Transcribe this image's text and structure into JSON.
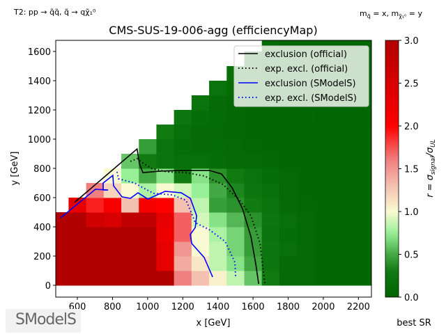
{
  "header_left": "T2: pp → q̃q̃, q̃ → qχ̃₁⁰",
  "header_right": {
    "m1": "m",
    "s1": "q̃",
    "eq1": " = x, ",
    "m2": "m",
    "s2": "χ̃₁⁰",
    "eq2": " = y"
  },
  "colorbar_label": {
    "r": "r = σ",
    "sub1": "signal",
    "slash": "/σ",
    "sub2": "UL"
  },
  "footer_right": "best SR",
  "logo_text": "SModelS",
  "chart_data": {
    "type": "heatmap",
    "title": "CMS-SUS-19-006-agg (efficiencyMap)",
    "xlabel": "x [GeV]",
    "ylabel": "y [GeV]",
    "xlim": [
      477,
      2274
    ],
    "ylim": [
      -81,
      1676
    ],
    "x_ticks": [
      "600",
      "800",
      "1000",
      "1200",
      "1400",
      "1600",
      "1800",
      "2000",
      "2200"
    ],
    "y_ticks": [
      "0",
      "200",
      "400",
      "600",
      "800",
      "1000",
      "1200",
      "1400",
      "1600"
    ],
    "colorbar": {
      "min": 0,
      "max": 3,
      "ticks": [
        "0.0",
        "0.5",
        "1.0",
        "1.5",
        "2.0",
        "2.5",
        "3.0"
      ],
      "stops": [
        [
          0,
          "#006400"
        ],
        [
          0.3,
          "#117a11"
        ],
        [
          0.5,
          "#44a844"
        ],
        [
          0.75,
          "#98f098"
        ],
        [
          1.0,
          "#fafad2"
        ],
        [
          1.3,
          "#f4c0b0"
        ],
        [
          1.6,
          "#f08080"
        ],
        [
          2.0,
          "#ff0000"
        ],
        [
          3.0,
          "#b00000"
        ]
      ]
    },
    "cell_size": 100,
    "x_centers": [
      500,
      600,
      700,
      800,
      900,
      1000,
      1100,
      1200,
      1300,
      1400,
      1500,
      1600,
      1700,
      1800,
      1900,
      2000,
      2100,
      2200,
      2300
    ],
    "y_centers": [
      50,
      150,
      250,
      350,
      450,
      550,
      650,
      750,
      850,
      950,
      1050,
      1150,
      1250,
      1350,
      1450,
      1550,
      1650
    ],
    "r": [
      [
        3,
        3,
        3,
        3,
        3,
        3,
        3,
        1.6,
        1.3,
        1.05,
        0.85,
        0.6,
        0.3,
        0.1,
        0.08,
        0.06,
        0.05,
        0.05,
        0.05
      ],
      [
        3,
        3,
        3,
        3,
        3,
        3,
        2.3,
        1.4,
        1.1,
        0.85,
        0.7,
        0.5,
        0.25,
        0.1,
        0.08,
        0.06,
        0.05,
        0.05,
        0.05
      ],
      [
        3,
        3,
        3,
        3,
        3,
        3,
        2.3,
        1.5,
        1.0,
        0.85,
        0.65,
        0.45,
        0.25,
        0.15,
        0.08,
        0.06,
        0.05,
        0.05,
        0.05
      ],
      [
        3,
        3,
        3,
        3,
        3,
        3,
        2.2,
        1.7,
        1.0,
        0.8,
        0.65,
        0.45,
        0.2,
        0.12,
        0.08,
        0.06,
        0.05,
        0.05,
        0.05
      ],
      [
        3,
        3,
        2.6,
        2.5,
        2.8,
        2.8,
        2.3,
        1.7,
        0.9,
        0.7,
        0.55,
        0.4,
        0.25,
        0.15,
        0.08,
        0.06,
        0.05,
        0.05,
        0.05
      ],
      [
        null,
        2.3,
        1.9,
        2.1,
        1.3,
        2.1,
        2.0,
        1.3,
        0.85,
        0.45,
        0.4,
        0.3,
        0.2,
        0.1,
        0.07,
        0.06,
        0.05,
        0.05,
        0.05
      ],
      [
        null,
        null,
        1.6,
        1.2,
        1.0,
        0.8,
        1.0,
        0.9,
        0.75,
        0.5,
        0.35,
        0.25,
        0.15,
        0.08,
        0.06,
        0.05,
        0.05,
        0.05,
        0.05
      ],
      [
        null,
        null,
        null,
        1.0,
        0.75,
        0.5,
        0.7,
        0.3,
        0.7,
        0.4,
        0.3,
        0.2,
        0.12,
        0.08,
        0.06,
        0.05,
        0.05,
        0.05,
        0.05
      ],
      [
        null,
        null,
        null,
        null,
        0.6,
        0.3,
        0.2,
        0.15,
        0.15,
        0.12,
        0.1,
        0.08,
        0.07,
        0.06,
        0.05,
        0.05,
        0.05,
        0.05,
        0.05
      ],
      [
        null,
        null,
        null,
        null,
        null,
        0.45,
        0.2,
        0.12,
        0.1,
        0.09,
        0.08,
        0.07,
        0.06,
        0.05,
        0.05,
        0.05,
        0.05,
        0.05,
        0.05
      ],
      [
        null,
        null,
        null,
        null,
        null,
        null,
        0.3,
        0.15,
        0.1,
        0.08,
        0.07,
        0.06,
        0.05,
        0.05,
        0.05,
        0.05,
        0.05,
        0.05,
        0.05
      ],
      [
        null,
        null,
        null,
        null,
        null,
        null,
        null,
        0.25,
        0.12,
        0.09,
        0.07,
        0.06,
        0.05,
        0.05,
        0.05,
        0.04,
        0.04,
        0.04,
        0.04
      ],
      [
        null,
        null,
        null,
        null,
        null,
        null,
        null,
        null,
        0.2,
        0.1,
        0.08,
        0.06,
        0.05,
        0.05,
        0.04,
        0.04,
        0.04,
        0.04,
        0.04
      ],
      [
        null,
        null,
        null,
        null,
        null,
        null,
        null,
        null,
        null,
        0.2,
        0.1,
        0.07,
        0.05,
        0.05,
        0.04,
        0.04,
        0.04,
        0.04,
        0.04
      ],
      [
        null,
        null,
        null,
        null,
        null,
        null,
        null,
        null,
        null,
        null,
        0.15,
        0.08,
        0.06,
        0.05,
        0.04,
        0.04,
        0.04,
        0.04,
        0.04
      ],
      [
        null,
        null,
        null,
        null,
        null,
        null,
        null,
        null,
        null,
        null,
        null,
        0.12,
        0.07,
        0.05,
        0.04,
        0.04,
        0.04,
        0.04,
        0.04
      ],
      [
        null,
        null,
        null,
        null,
        null,
        null,
        null,
        null,
        null,
        null,
        null,
        null,
        0.1,
        0.06,
        0.05,
        0.04,
        0.04,
        0.04,
        0.04
      ]
    ],
    "legend_position": "top-right",
    "series": [
      {
        "name": "exclusion (official)",
        "color": "#000000",
        "style": "solid",
        "points": [
          [
            584,
            567
          ],
          [
            940,
            933
          ],
          [
            953,
            833
          ],
          [
            973,
            771
          ],
          [
            1072,
            781
          ],
          [
            1191,
            786
          ],
          [
            1350,
            786
          ],
          [
            1421,
            762
          ],
          [
            1481,
            667
          ],
          [
            1540,
            524
          ],
          [
            1588,
            333
          ],
          [
            1616,
            143
          ],
          [
            1632,
            10
          ]
        ]
      },
      {
        "name": "exp. excl. (official)",
        "color": "#000000",
        "style": "dotted",
        "points": [
          [
            902,
            848
          ],
          [
            941,
            867
          ],
          [
            965,
            843
          ],
          [
            1021,
            800
          ],
          [
            1112,
            776
          ],
          [
            1219,
            771
          ],
          [
            1322,
            748
          ],
          [
            1429,
            690
          ],
          [
            1521,
            586
          ],
          [
            1588,
            476
          ],
          [
            1640,
            286
          ],
          [
            1667,
            14
          ]
        ]
      },
      {
        "name": "exclusion (SModelS)",
        "color": "#0000ff",
        "style": "solid",
        "points": [
          [
            505,
            462
          ],
          [
            703,
            657
          ],
          [
            775,
            652
          ],
          [
            747,
            652
          ],
          [
            747,
            700
          ],
          [
            802,
            752
          ],
          [
            806,
            681
          ],
          [
            854,
            605
          ],
          [
            902,
            595
          ],
          [
            945,
            633
          ],
          [
            1001,
            590
          ],
          [
            1100,
            643
          ],
          [
            1191,
            633
          ],
          [
            1243,
            595
          ],
          [
            1279,
            476
          ],
          [
            1271,
            395
          ],
          [
            1243,
            348
          ],
          [
            1251,
            286
          ],
          [
            1322,
            190
          ],
          [
            1370,
            57
          ]
        ]
      },
      {
        "name": "exp. excl. (SModelS)",
        "color": "#0000ff",
        "style": "dotted",
        "points": [
          [
            826,
            776
          ],
          [
            834,
            729
          ],
          [
            925,
            700
          ],
          [
            1033,
            629
          ],
          [
            1140,
            619
          ],
          [
            1219,
            581
          ],
          [
            1251,
            490
          ],
          [
            1271,
            429
          ],
          [
            1350,
            381
          ],
          [
            1441,
            300
          ],
          [
            1497,
            157
          ],
          [
            1501,
            57
          ]
        ]
      }
    ]
  }
}
